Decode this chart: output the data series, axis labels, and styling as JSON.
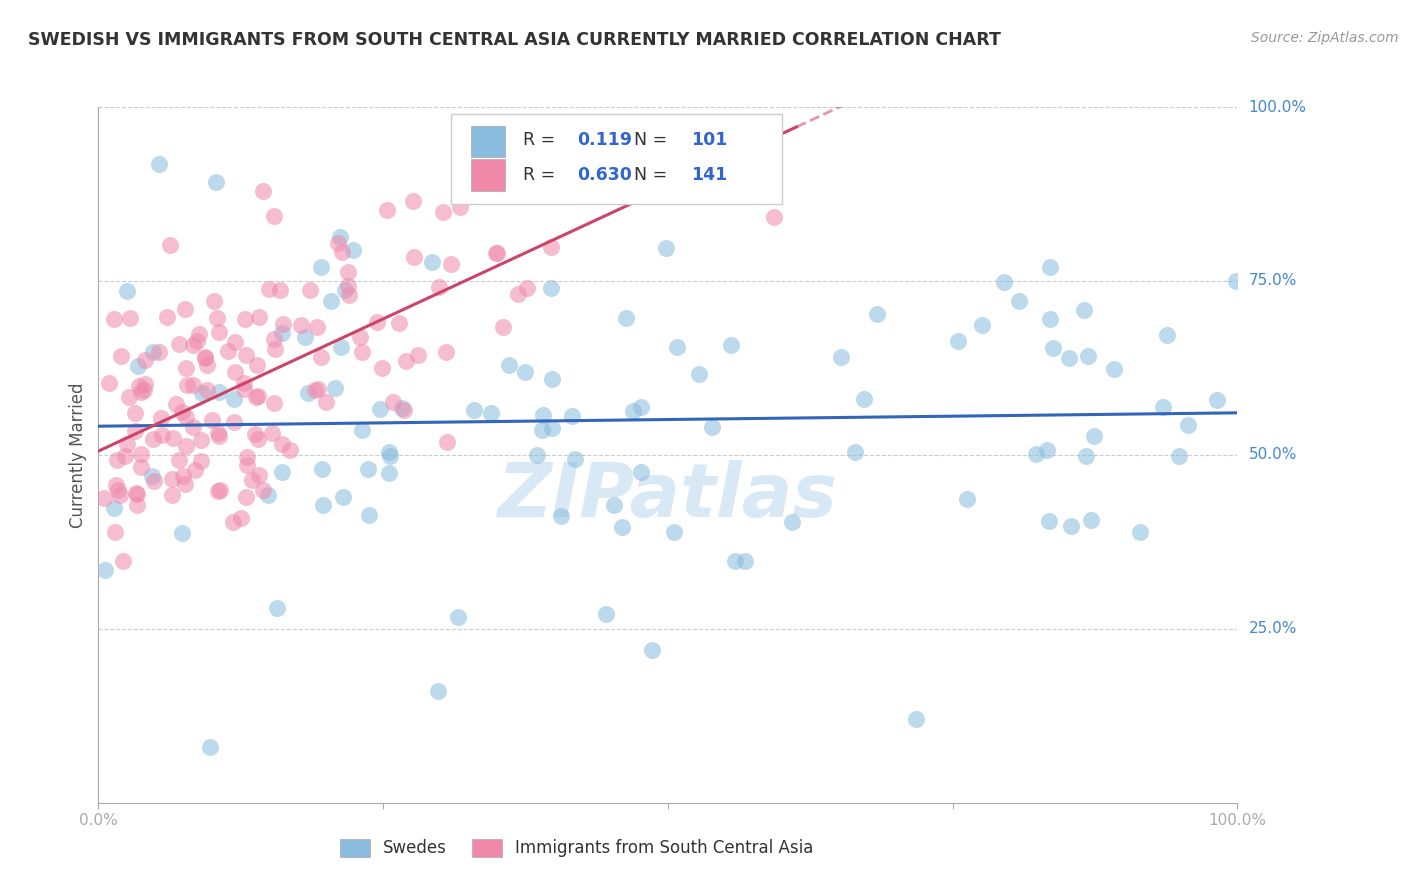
{
  "title": "SWEDISH VS IMMIGRANTS FROM SOUTH CENTRAL ASIA CURRENTLY MARRIED CORRELATION CHART",
  "source": "Source: ZipAtlas.com",
  "ylabel": "Currently Married",
  "swedes_R": 0.119,
  "swedes_N": 101,
  "immigrants_R": 0.63,
  "immigrants_N": 141,
  "scatter_color_swedes": "#88bbdd",
  "scatter_color_immigrants": "#f088aa",
  "trend_color_swedes": "#3366bb",
  "trend_color_immigrants": "#cc4466",
  "watermark_color": "#c8dff0",
  "background_color": "#ffffff",
  "grid_color": "#cccccc",
  "tick_label_color": "#4488cc",
  "ylabel_color": "#555555",
  "title_color": "#333333",
  "source_color": "#999999",
  "legend_text_color": "#333333",
  "legend_value_color": "#3366cc"
}
